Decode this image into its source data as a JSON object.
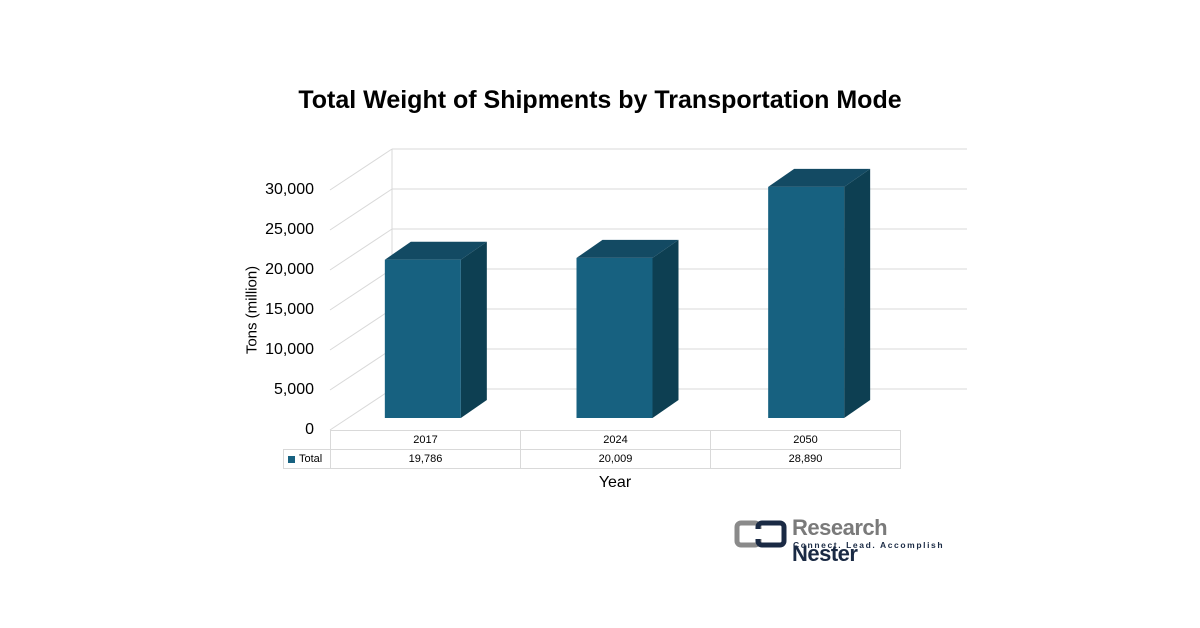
{
  "chart_data": {
    "type": "bar",
    "title": "Total Weight of Shipments by Transportation Mode",
    "xlabel": "Year",
    "ylabel": "Tons (million)",
    "categories": [
      "2017",
      "2024",
      "2050"
    ],
    "series": [
      {
        "name": "Total",
        "values": [
          19786,
          20009,
          28890
        ]
      }
    ],
    "value_labels": [
      "19,786",
      "20,009",
      "28,890"
    ],
    "ylim": [
      0,
      30000
    ],
    "yticks": [
      "0",
      "5,000",
      "10,000",
      "15,000",
      "20,000",
      "25,000",
      "30,000"
    ],
    "grid": true,
    "style": "3d-column",
    "legend": "data-table",
    "colors": {
      "front": "#176180",
      "side": "#0d3f52",
      "top": "#134a63"
    }
  },
  "logo": {
    "name_light": "Research",
    "name_dark": "Nester",
    "tagline": "Connect. Lead. Accomplish"
  }
}
